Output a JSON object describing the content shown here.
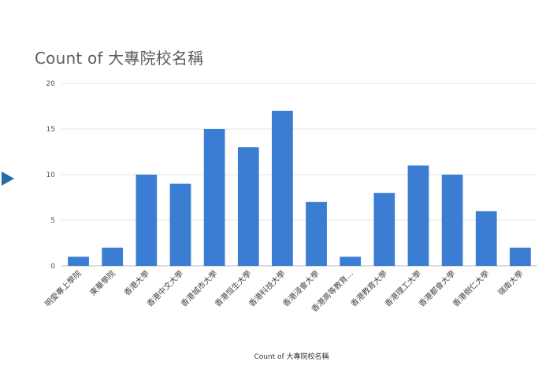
{
  "chart_data": {
    "type": "bar",
    "title": "Count of 大專院校名稱",
    "xlabel": "Count of 大專院校名稱",
    "ylabel": "",
    "ylim": [
      0,
      20
    ],
    "yticks": [
      0,
      5,
      10,
      15,
      20
    ],
    "grid": true,
    "legend": "none",
    "categories": [
      "明愛專上學院",
      "東華學院",
      "香港大學",
      "香港中文大學",
      "香港城市大學",
      "香港恒生大學",
      "香港科技大學",
      "香港浸會大學",
      "香港高等教育...",
      "香港教育大學",
      "香港理工大學",
      "香港都會大學",
      "香港樹仁大學",
      "嶺南大學"
    ],
    "values": [
      1,
      2,
      10,
      9,
      15,
      13,
      17,
      7,
      1,
      8,
      11,
      10,
      6,
      2
    ],
    "bar_color": "#3b7dd2",
    "grid_color": "#e3e3e3"
  }
}
